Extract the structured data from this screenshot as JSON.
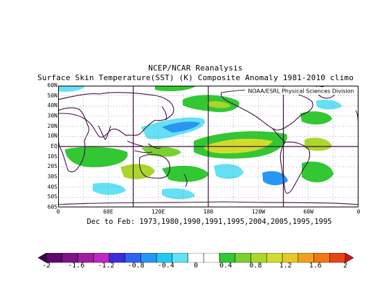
{
  "title_line1": "NCEP/NCAR Reanalysis",
  "title_line2": "Surface Skin Temperature(SST) (K) Composite Anomaly 1981-2010 climo",
  "credit": "NOAA/ESRL Physical Sciences Division",
  "subtitle": "Dec to Feb: 1973,1980,1990,1991,1995,2004,2005,1995,1995",
  "lat_labels": [
    "60N",
    "50N",
    "40N",
    "30N",
    "20N",
    "10N",
    "EQ",
    "10S",
    "20S",
    "30S",
    "40S",
    "50S",
    "60S"
  ],
  "lon_labels": [
    "0",
    "60E",
    "120E",
    "180",
    "120W",
    "60W",
    "0"
  ],
  "colorbar_labels": [
    "-2",
    "-1.6",
    "-1.2",
    "-0.8",
    "-0.4",
    "0",
    "0.4",
    "0.8",
    "1.2",
    "1.6",
    "2"
  ],
  "colors": {
    "land_outline": "#3d0a3d",
    "grid": "#7a7a7a",
    "neg_strong": "#2a0040",
    "neg_purple": "#9b1a9b",
    "neg_blue": "#1e4be0",
    "neg_light": "#5fd0f0",
    "neg_faint": "#a0e6f5",
    "pos_faint": "#9ee07a",
    "pos_green": "#2ec832",
    "pos_yellow": "#e6dc32",
    "pos_orange": "#f08c14",
    "pos_red": "#d21414"
  },
  "colorbar_colors": [
    "#3a004a",
    "#5c0a6e",
    "#7d1487",
    "#a01ea0",
    "#bf28c3",
    "#3c2ddc",
    "#2d64f0",
    "#2896f5",
    "#23c8f0",
    "#64e1f5",
    "#ffffff",
    "#ffffff",
    "#32c832",
    "#78d22d",
    "#aad72d",
    "#d2dc2d",
    "#e6c828",
    "#f0a01e",
    "#f07814",
    "#e64614",
    "#c81414"
  ]
}
